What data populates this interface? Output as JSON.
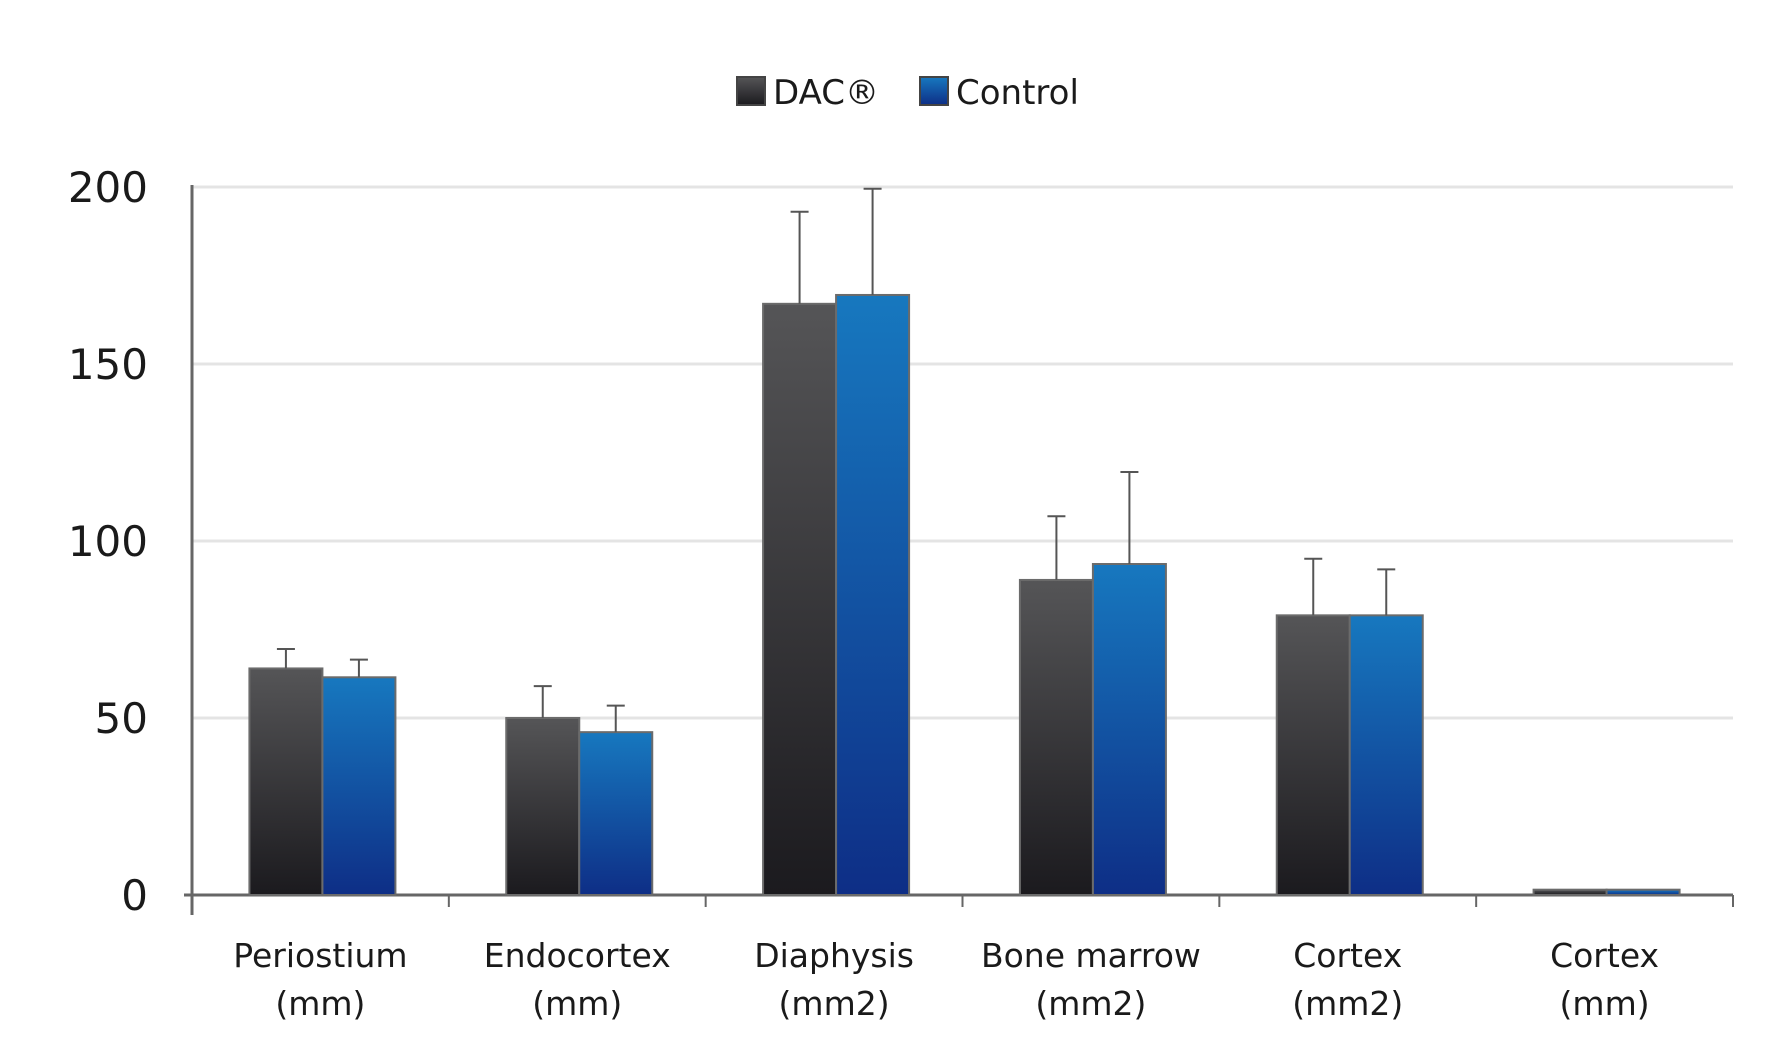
{
  "chart_data": {
    "type": "bar",
    "title": "",
    "xlabel": "",
    "ylabel": "",
    "ylim": [
      0,
      200
    ],
    "yticks": [
      0,
      50,
      100,
      150,
      200
    ],
    "ytick_labels": [
      "0",
      "50",
      "100",
      "150",
      "200"
    ],
    "grid": true,
    "legend_position": "top-center",
    "categories": [
      [
        "Periostium",
        "(mm)"
      ],
      [
        "Endocortex",
        "(mm)"
      ],
      [
        "Diaphysis",
        "(mm2)"
      ],
      [
        "Bone marrow",
        "(mm2)"
      ],
      [
        "Cortex",
        "(mm2)"
      ],
      [
        "Cortex",
        "(mm)"
      ]
    ],
    "series": [
      {
        "name": "DAC®",
        "color_top": "#555557",
        "color_bottom": "#1b1a1e",
        "values": [
          64,
          50,
          167,
          89,
          79,
          1.5
        ],
        "errors": [
          5.5,
          9,
          26,
          18,
          16,
          0
        ]
      },
      {
        "name": "Control",
        "color_top": "#1778bf",
        "color_bottom": "#0e2e86",
        "values": [
          61.5,
          46,
          169.5,
          93.5,
          79,
          1.5
        ],
        "errors": [
          5,
          7.5,
          30,
          26,
          13,
          0
        ]
      }
    ],
    "colors": {
      "axis": "#666666",
      "grid": "#e4e4e4",
      "bar_border": "#6b6b6b",
      "error_bar": "#555555"
    }
  }
}
